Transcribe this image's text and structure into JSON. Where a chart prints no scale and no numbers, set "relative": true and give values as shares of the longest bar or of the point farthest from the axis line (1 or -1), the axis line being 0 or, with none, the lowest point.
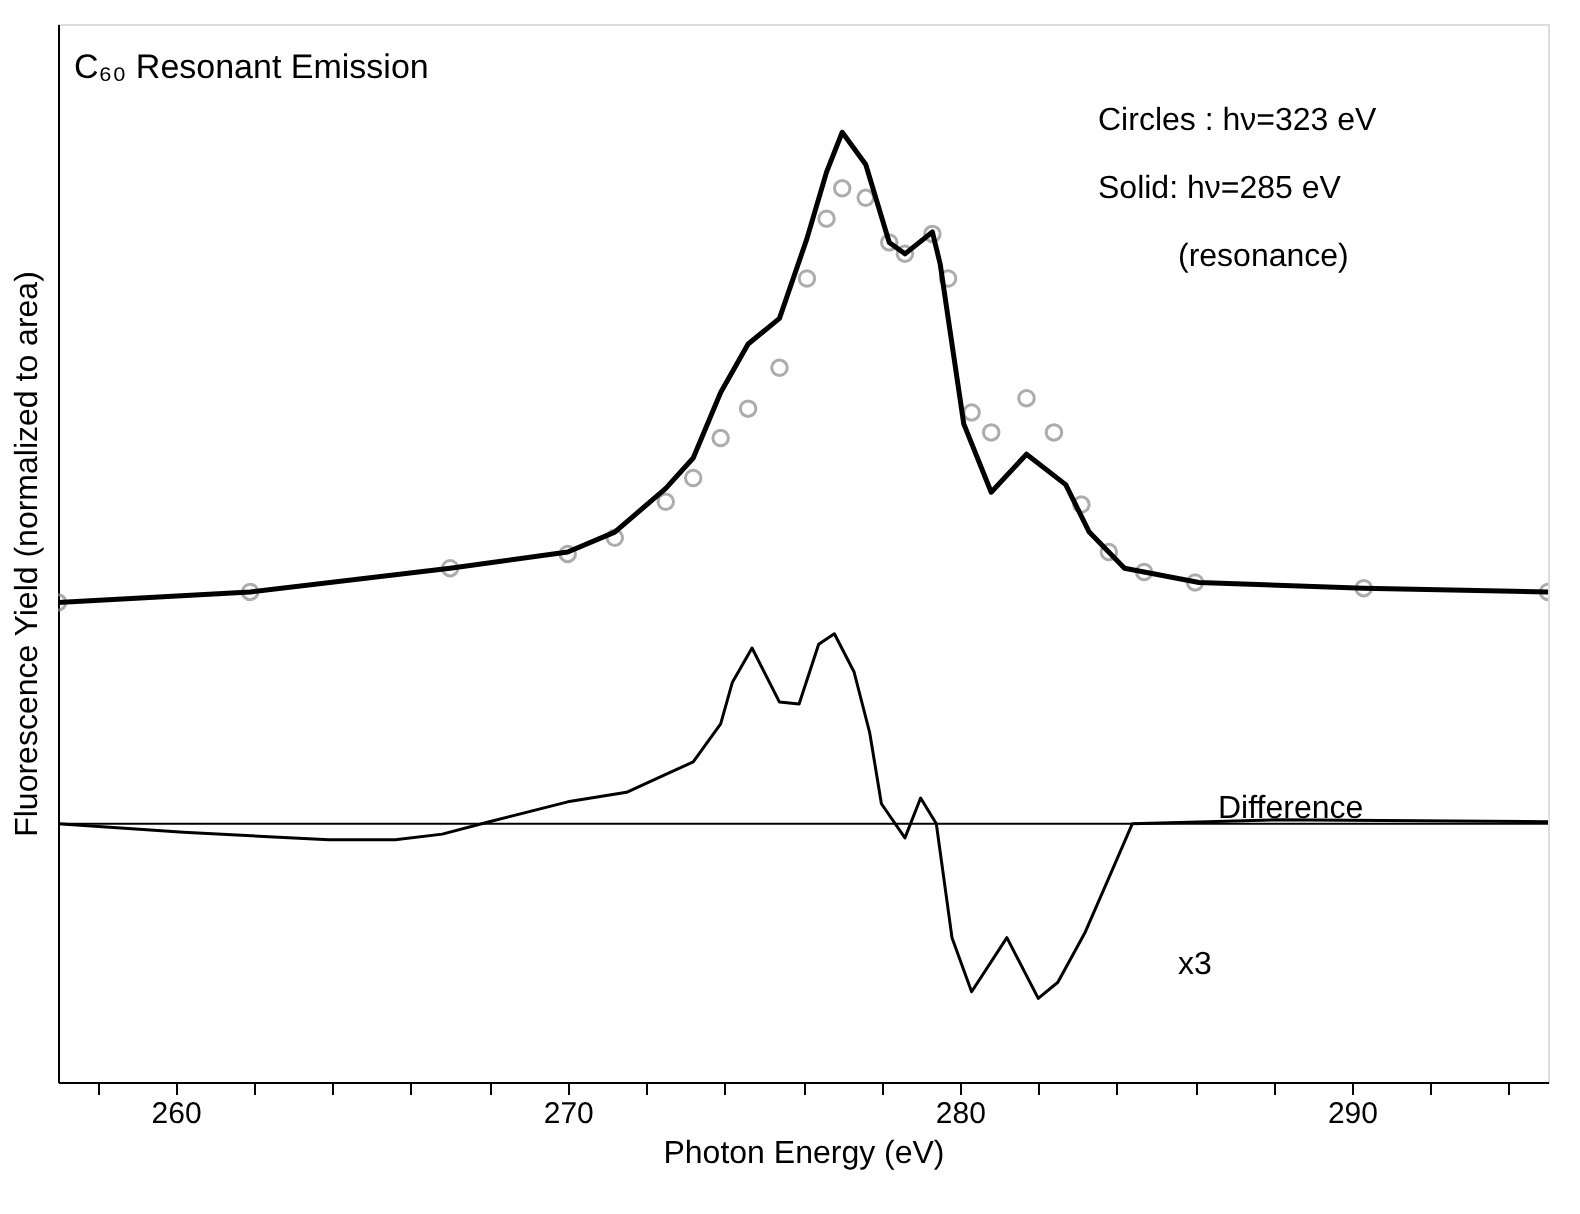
{
  "chart_data": {
    "type": "line",
    "title": "C₆₀ Resonant Emission",
    "xlabel": "Photon Energy (eV)",
    "ylabel": "Fluorescence Yield (normalized to area)",
    "relative": true,
    "grid": false,
    "xlim": [
      257,
      295
    ],
    "xticks": [
      {
        "value": 258,
        "label": null
      },
      260,
      {
        "value": 262,
        "label": null
      },
      {
        "value": 264,
        "label": null
      },
      {
        "value": 266,
        "label": null
      },
      {
        "value": 268,
        "label": null
      },
      270,
      {
        "value": 272,
        "label": null
      },
      {
        "value": 274,
        "label": null
      },
      {
        "value": 276,
        "label": null
      },
      {
        "value": 278,
        "label": null
      },
      280,
      {
        "value": 282,
        "label": null
      },
      {
        "value": 284,
        "label": null
      },
      {
        "value": 286,
        "label": null
      },
      {
        "value": 288,
        "label": null
      },
      290,
      {
        "value": 292,
        "label": null
      },
      {
        "value": 294,
        "label": null
      }
    ],
    "annotations": [
      "Circles : hν=323 eV",
      "Solid:    hν=285 eV",
      "(resonance)",
      "Difference",
      "x3"
    ],
    "ref_lines": [
      {
        "axis": "y",
        "value": 0.272,
        "color": "#000000"
      }
    ],
    "series": [
      {
        "type": "scatter",
        "marker": "circle",
        "color": "#8a8a8a",
        "x": [
          257,
          261.9,
          267,
          270,
          271.2,
          272.5,
          273.2,
          273.9,
          274.6,
          275.4,
          276.1,
          276.6,
          277,
          277.6,
          278.2,
          278.6,
          279.3,
          279.7,
          280.3,
          280.8,
          281.7,
          282.4,
          283.1,
          283.8,
          284.7,
          286,
          290.3,
          295
        ],
        "values": [
          0.505,
          0.516,
          0.541,
          0.556,
          0.573,
          0.611,
          0.636,
          0.678,
          0.709,
          0.752,
          0.846,
          0.909,
          0.941,
          0.931,
          0.884,
          0.872,
          0.893,
          0.846,
          0.705,
          0.684,
          0.72,
          0.684,
          0.608,
          0.558,
          0.537,
          0.526,
          0.52,
          0.516
        ]
      },
      {
        "line_style": "solid",
        "color": "#000000",
        "x": [
          257,
          261.9,
          267,
          270,
          271.2,
          272.5,
          273.2,
          273.9,
          274.6,
          275.4,
          276.1,
          276.6,
          277,
          277.6,
          278.2,
          278.6,
          279.3,
          279.5,
          280.1,
          280.8,
          281.7,
          282.7,
          283.3,
          284.2,
          286.1,
          290.3,
          295
        ],
        "values": [
          0.505,
          0.516,
          0.541,
          0.558,
          0.579,
          0.625,
          0.657,
          0.726,
          0.777,
          0.804,
          0.888,
          0.958,
          1.0,
          0.966,
          0.884,
          0.872,
          0.895,
          0.861,
          0.693,
          0.621,
          0.661,
          0.629,
          0.579,
          0.541,
          0.526,
          0.52,
          0.516
        ]
      },
      {
        "line_style": "solid",
        "color": "#000000",
        "x": [
          257,
          260.2,
          263.9,
          265.6,
          266.8,
          268,
          270,
          271.5,
          272.5,
          273.2,
          273.9,
          274.2,
          274.7,
          275.4,
          275.9,
          276.4,
          276.8,
          277.3,
          277.7,
          278,
          278.6,
          279,
          279.4,
          279.8,
          280.3,
          281.2,
          282,
          282.5,
          283.2,
          283.8,
          284.4,
          288,
          295
        ],
        "values": [
          0.272,
          0.263,
          0.255,
          0.255,
          0.261,
          0.274,
          0.295,
          0.305,
          0.324,
          0.337,
          0.377,
          0.421,
          0.457,
          0.4,
          0.398,
          0.461,
          0.472,
          0.432,
          0.368,
          0.293,
          0.257,
          0.299,
          0.272,
          0.152,
          0.095,
          0.152,
          0.088,
          0.105,
          0.158,
          0.215,
          0.272,
          0.276,
          0.274
        ]
      }
    ]
  }
}
